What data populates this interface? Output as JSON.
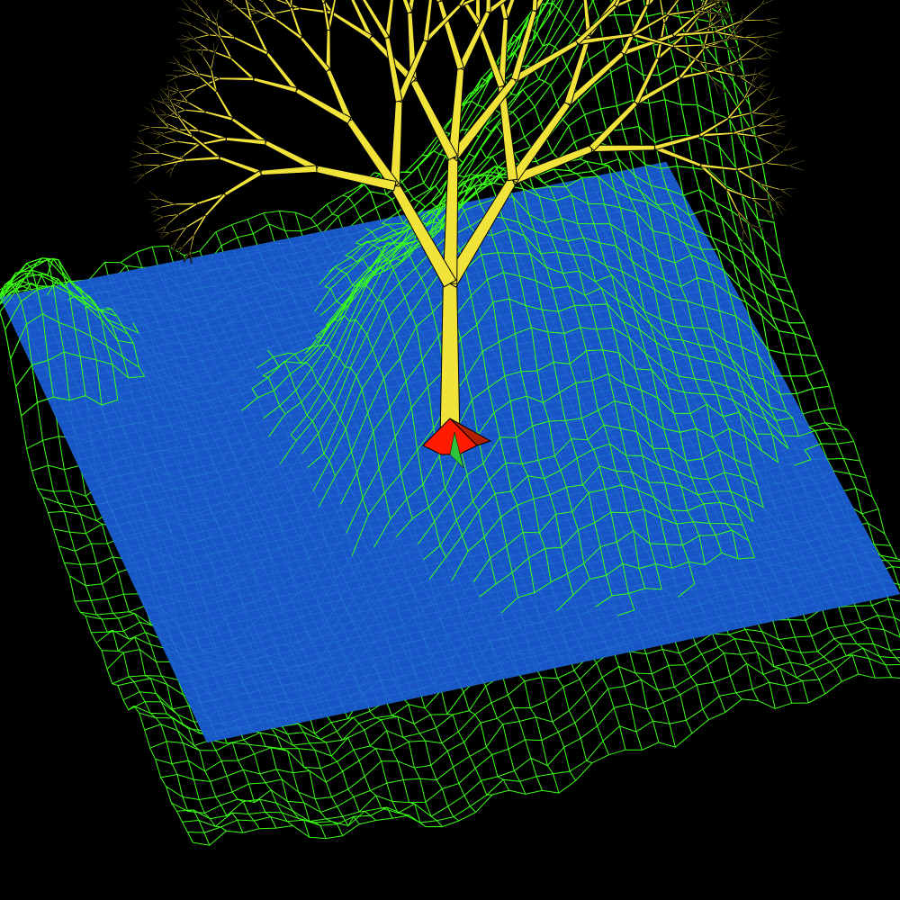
{
  "scene": {
    "description_free": true,
    "background_color": "#000000",
    "colors": {
      "terrain_wireframe": "#39ff14",
      "water_plane": "#1a5bd6",
      "water_grid": "#2a8ad8",
      "tree_fill": "#f2e33a",
      "tree_outline": "#000000",
      "tree_base": "#ff1a00",
      "tree_base_accent": "#2cc23a"
    }
  }
}
